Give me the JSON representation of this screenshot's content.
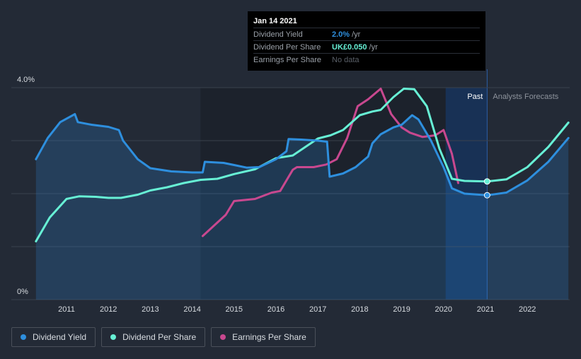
{
  "chart_data": {
    "type": "line",
    "x_ticks": [
      "2011",
      "2012",
      "2013",
      "2014",
      "2015",
      "2016",
      "2017",
      "2018",
      "2019",
      "2020",
      "2021",
      "2022"
    ],
    "y_ticks": [
      "4.0%",
      "0%"
    ],
    "ylim": [
      0,
      4.0
    ],
    "grid": true,
    "legend_position": "bottom-left",
    "regions": {
      "past_label": "Past",
      "forecast_label": "Analysts Forecasts"
    },
    "series": [
      {
        "name": "Dividend Yield",
        "color": "#2e8fde",
        "values": [
          [
            2010.27,
            2.65
          ],
          [
            2010.55,
            3.05
          ],
          [
            2010.85,
            3.35
          ],
          [
            2011.2,
            3.5
          ],
          [
            2011.27,
            3.35
          ],
          [
            2011.6,
            3.3
          ],
          [
            2012.0,
            3.26
          ],
          [
            2012.25,
            3.2
          ],
          [
            2012.35,
            3.0
          ],
          [
            2012.7,
            2.65
          ],
          [
            2013.0,
            2.48
          ],
          [
            2013.5,
            2.42
          ],
          [
            2014.0,
            2.4
          ],
          [
            2014.25,
            2.4
          ],
          [
            2014.3,
            2.6
          ],
          [
            2014.75,
            2.58
          ],
          [
            2015.0,
            2.54
          ],
          [
            2015.3,
            2.49
          ],
          [
            2015.6,
            2.5
          ],
          [
            2016.0,
            2.65
          ],
          [
            2016.25,
            2.8
          ],
          [
            2016.3,
            3.03
          ],
          [
            2016.6,
            3.02
          ],
          [
            2017.0,
            3.0
          ],
          [
            2017.22,
            2.98
          ],
          [
            2017.28,
            2.32
          ],
          [
            2017.6,
            2.38
          ],
          [
            2017.9,
            2.5
          ],
          [
            2018.2,
            2.7
          ],
          [
            2018.3,
            2.95
          ],
          [
            2018.5,
            3.12
          ],
          [
            2018.8,
            3.25
          ],
          [
            2019.0,
            3.3
          ],
          [
            2019.25,
            3.48
          ],
          [
            2019.4,
            3.4
          ],
          [
            2019.7,
            3.0
          ],
          [
            2020.0,
            2.5
          ],
          [
            2020.2,
            2.1
          ],
          [
            2020.5,
            2.0
          ],
          [
            2021.04,
            1.97
          ],
          [
            2021.5,
            2.02
          ],
          [
            2022.0,
            2.25
          ],
          [
            2022.5,
            2.6
          ],
          [
            2022.98,
            3.05
          ]
        ]
      },
      {
        "name": "Dividend Per Share",
        "color": "#67f0d5",
        "values": [
          [
            2010.27,
            1.1
          ],
          [
            2010.6,
            1.55
          ],
          [
            2011.0,
            1.9
          ],
          [
            2011.3,
            1.95
          ],
          [
            2011.7,
            1.94
          ],
          [
            2012.0,
            1.92
          ],
          [
            2012.3,
            1.92
          ],
          [
            2012.7,
            1.98
          ],
          [
            2013.0,
            2.06
          ],
          [
            2013.4,
            2.12
          ],
          [
            2013.8,
            2.2
          ],
          [
            2014.2,
            2.26
          ],
          [
            2014.6,
            2.28
          ],
          [
            2015.0,
            2.37
          ],
          [
            2015.5,
            2.46
          ],
          [
            2016.0,
            2.67
          ],
          [
            2016.4,
            2.72
          ],
          [
            2016.7,
            2.88
          ],
          [
            2017.0,
            3.04
          ],
          [
            2017.3,
            3.1
          ],
          [
            2017.6,
            3.2
          ],
          [
            2018.0,
            3.48
          ],
          [
            2018.3,
            3.55
          ],
          [
            2018.5,
            3.58
          ],
          [
            2018.8,
            3.82
          ],
          [
            2019.05,
            3.98
          ],
          [
            2019.3,
            3.97
          ],
          [
            2019.6,
            3.65
          ],
          [
            2019.9,
            2.85
          ],
          [
            2020.2,
            2.28
          ],
          [
            2020.5,
            2.24
          ],
          [
            2021.04,
            2.23
          ],
          [
            2021.5,
            2.27
          ],
          [
            2022.0,
            2.5
          ],
          [
            2022.5,
            2.88
          ],
          [
            2022.98,
            3.34
          ]
        ]
      },
      {
        "name": "Earnings Per Share",
        "color": "#c8488f",
        "values": [
          [
            2014.25,
            1.2
          ],
          [
            2014.8,
            1.6
          ],
          [
            2015.0,
            1.86
          ],
          [
            2015.5,
            1.9
          ],
          [
            2015.9,
            2.02
          ],
          [
            2016.1,
            2.05
          ],
          [
            2016.4,
            2.45
          ],
          [
            2016.5,
            2.5
          ],
          [
            2016.9,
            2.5
          ],
          [
            2017.2,
            2.55
          ],
          [
            2017.45,
            2.65
          ],
          [
            2017.7,
            3.05
          ],
          [
            2017.95,
            3.65
          ],
          [
            2018.2,
            3.78
          ],
          [
            2018.5,
            3.98
          ],
          [
            2018.75,
            3.5
          ],
          [
            2019.0,
            3.25
          ],
          [
            2019.2,
            3.15
          ],
          [
            2019.5,
            3.07
          ],
          [
            2019.8,
            3.1
          ],
          [
            2020.0,
            3.2
          ],
          [
            2020.2,
            2.75
          ],
          [
            2020.35,
            2.2
          ]
        ]
      }
    ],
    "highlight": {
      "x": 2021.04,
      "label": "Jan 14 2021"
    }
  },
  "tooltip": {
    "date": "Jan 14 2021",
    "rows": [
      {
        "label": "Dividend Yield",
        "value": "2.0%",
        "unit": "/yr",
        "color": "#2e8fde"
      },
      {
        "label": "Dividend Per Share",
        "value": "UK£0.050",
        "unit": "/yr",
        "color": "#67f0d5"
      },
      {
        "label": "Earnings Per Share",
        "value": "No data",
        "unit": "",
        "color": "#5a6068"
      }
    ]
  },
  "legend": [
    {
      "label": "Dividend Yield",
      "color": "#2e8fde"
    },
    {
      "label": "Dividend Per Share",
      "color": "#67f0d5"
    },
    {
      "label": "Earnings Per Share",
      "color": "#c8488f"
    }
  ]
}
